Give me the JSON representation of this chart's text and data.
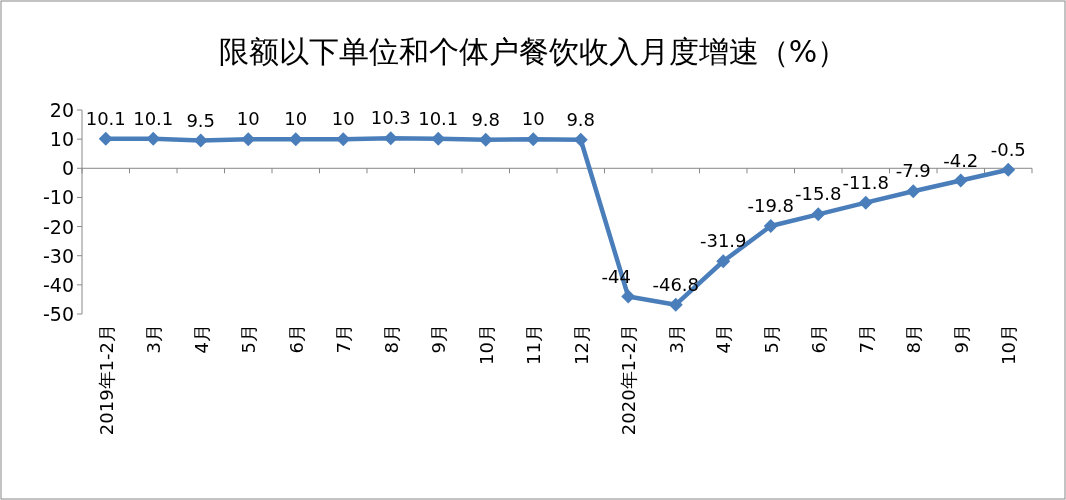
{
  "chart_data": {
    "type": "line",
    "title": "限额以下单位和个体户餐饮收入月度增速（%）",
    "categories": [
      "2019年1-2月",
      "3月",
      "4月",
      "5月",
      "6月",
      "7月",
      "8月",
      "9月",
      "10月",
      "11月",
      "12月",
      "2020年1-2月",
      "3月",
      "4月",
      "5月",
      "6月",
      "7月",
      "8月",
      "9月",
      "10月"
    ],
    "values": [
      10.1,
      10.1,
      9.5,
      10,
      10,
      10,
      10.3,
      10.1,
      9.8,
      10,
      9.8,
      -44,
      -46.8,
      -31.9,
      -19.8,
      -15.8,
      -11.8,
      -7.9,
      -4.2,
      -0.5
    ],
    "color": "#4a7ebb",
    "ylim": [
      -50,
      20
    ],
    "yticks": [
      -50,
      -40,
      -30,
      -20,
      -10,
      0,
      10,
      20
    ],
    "marker": "diamond",
    "data_labels": true
  }
}
